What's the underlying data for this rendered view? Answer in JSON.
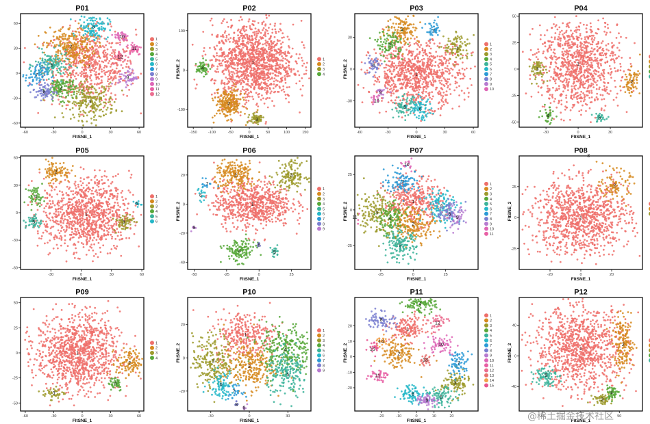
{
  "figure": {
    "watermark": "@稀土掘金技术社区",
    "cluster_colors": [
      "#ee6f6a",
      "#d68a1f",
      "#9c9a2c",
      "#57a83a",
      "#3bb39a",
      "#25b7c8",
      "#2b9ad6",
      "#7a7fd0",
      "#b77ad0",
      "#de66b6",
      "#e860a5",
      "#eb6e8f",
      "#e8716f",
      "#f2a04a",
      "#e85590"
    ]
  },
  "chart_data": [
    {
      "type": "scatter",
      "title": "P01",
      "xlabel": "FItSNE_1",
      "ylabel": "",
      "xlim": [
        -65,
        65
      ],
      "ylim": [
        -65,
        75
      ],
      "xticks": [
        -60,
        -30,
        0,
        30,
        60
      ],
      "yticks": [
        -60,
        -30,
        0,
        30,
        60
      ],
      "legend": [
        "1",
        "2",
        "3",
        "4",
        "5",
        "6",
        "7",
        "8",
        "9",
        "10",
        "11",
        "12"
      ],
      "clusters": [
        {
          "id": "1",
          "x": 8,
          "y": 8,
          "sx": 24,
          "sy": 22,
          "n": 650
        },
        {
          "id": "2",
          "x": -12,
          "y": 32,
          "sx": 13,
          "sy": 12,
          "n": 260
        },
        {
          "id": "3",
          "x": 8,
          "y": -34,
          "sx": 13,
          "sy": 11,
          "n": 230
        },
        {
          "id": "4",
          "x": -22,
          "y": -18,
          "sx": 8,
          "sy": 7,
          "n": 120
        },
        {
          "id": "5",
          "x": -32,
          "y": 10,
          "sx": 9,
          "sy": 8,
          "n": 120
        },
        {
          "id": "6",
          "x": 12,
          "y": 56,
          "sx": 8,
          "sy": 7,
          "n": 110
        },
        {
          "id": "7",
          "x": -48,
          "y": -2,
          "sx": 6,
          "sy": 7,
          "n": 70
        },
        {
          "id": "8",
          "x": -40,
          "y": -22,
          "sx": 6,
          "sy": 5,
          "n": 70
        },
        {
          "id": "9",
          "x": 48,
          "y": -5,
          "sx": 5,
          "sy": 5,
          "n": 50
        },
        {
          "id": "10",
          "x": 42,
          "y": 44,
          "sx": 4,
          "sy": 4,
          "n": 35
        },
        {
          "id": "11",
          "x": 55,
          "y": 30,
          "sx": 4,
          "sy": 4,
          "n": 35
        },
        {
          "id": "12",
          "x": 40,
          "y": 20,
          "sx": 4,
          "sy": 4,
          "n": 40
        }
      ]
    },
    {
      "type": "scatter",
      "title": "P02",
      "xlabel": "FItSNE_1",
      "ylabel": "FItSNE_2",
      "xlim": [
        -165,
        165
      ],
      "ylim": [
        -145,
        150
      ],
      "xticks": [
        -150,
        -100,
        -50,
        0,
        50,
        100,
        150
      ],
      "yticks": [
        -100,
        0,
        100
      ],
      "legend": [
        "1",
        "2",
        "3",
        "4"
      ],
      "clusters": [
        {
          "id": "1",
          "x": 10,
          "y": 20,
          "sx": 55,
          "sy": 50,
          "n": 1300
        },
        {
          "id": "2",
          "x": -55,
          "y": -85,
          "sx": 18,
          "sy": 18,
          "n": 230
        },
        {
          "id": "3",
          "x": 20,
          "y": -125,
          "sx": 9,
          "sy": 7,
          "n": 70
        },
        {
          "id": "4",
          "x": -125,
          "y": 5,
          "sx": 8,
          "sy": 9,
          "n": 60
        }
      ]
    },
    {
      "type": "scatter",
      "title": "P03",
      "xlabel": "FItSNE_1",
      "ylabel": "FItSNE_2",
      "xlim": [
        -65,
        65
      ],
      "ylim": [
        -55,
        55
      ],
      "xticks": [
        -60,
        -30,
        0,
        30,
        60
      ],
      "yticks": [
        -30,
        0,
        30
      ],
      "legend": [
        "1",
        "2",
        "3",
        "4",
        "5",
        "6",
        "7",
        "8",
        "9",
        "10"
      ],
      "clusters": [
        {
          "id": "1",
          "x": 0,
          "y": -5,
          "sx": 24,
          "sy": 15,
          "n": 900
        },
        {
          "id": "2",
          "x": -15,
          "y": 38,
          "sx": 9,
          "sy": 7,
          "n": 130
        },
        {
          "id": "3",
          "x": 43,
          "y": 20,
          "sx": 7,
          "sy": 7,
          "n": 90
        },
        {
          "id": "4",
          "x": -28,
          "y": 24,
          "sx": 7,
          "sy": 6,
          "n": 90
        },
        {
          "id": "5",
          "x": -12,
          "y": -36,
          "sx": 6,
          "sy": 5,
          "n": 70
        },
        {
          "id": "6",
          "x": 4,
          "y": -38,
          "sx": 6,
          "sy": 5,
          "n": 70
        },
        {
          "id": "7",
          "x": 18,
          "y": 36,
          "sx": 4,
          "sy": 4,
          "n": 40
        },
        {
          "id": "8",
          "x": -45,
          "y": 4,
          "sx": 4,
          "sy": 5,
          "n": 40
        },
        {
          "id": "9",
          "x": -38,
          "y": -22,
          "sx": 3,
          "sy": 3,
          "n": 20
        },
        {
          "id": "10",
          "x": -42,
          "y": -30,
          "sx": 3,
          "sy": 3,
          "n": 15
        }
      ]
    },
    {
      "type": "scatter",
      "title": "P04",
      "xlabel": "FItSNE_1",
      "ylabel": "",
      "xlim": [
        -55,
        60
      ],
      "ylim": [
        -55,
        55
      ],
      "xticks": [
        -30,
        0,
        30
      ],
      "yticks": [
        -50,
        -25,
        0,
        25,
        50
      ],
      "legend": [
        "1",
        "2",
        "3",
        "4",
        "5"
      ],
      "clusters": [
        {
          "id": "1",
          "x": 0,
          "y": 5,
          "sx": 19,
          "sy": 22,
          "n": 950
        },
        {
          "id": "2",
          "x": 50,
          "y": -12,
          "sx": 4,
          "sy": 6,
          "n": 70
        },
        {
          "id": "3",
          "x": -38,
          "y": 0,
          "sx": 4,
          "sy": 5,
          "n": 60
        },
        {
          "id": "4",
          "x": -28,
          "y": -44,
          "sx": 3,
          "sy": 4,
          "n": 35
        },
        {
          "id": "5",
          "x": 20,
          "y": -46,
          "sx": 3,
          "sy": 2,
          "n": 25
        }
      ]
    },
    {
      "type": "scatter",
      "title": "P05",
      "xlabel": "FItSNE_1",
      "ylabel": "",
      "xlim": [
        -60,
        62
      ],
      "ylim": [
        -62,
        65
      ],
      "xticks": [
        -30,
        0,
        30,
        60
      ],
      "yticks": [
        -60,
        -30,
        0,
        30,
        60
      ],
      "legend": [
        "1",
        "2",
        "3",
        "4",
        "5",
        "6"
      ],
      "clusters": [
        {
          "id": "1",
          "x": 5,
          "y": -2,
          "sx": 22,
          "sy": 20,
          "n": 1000
        },
        {
          "id": "2",
          "x": -25,
          "y": 45,
          "sx": 7,
          "sy": 6,
          "n": 90
        },
        {
          "id": "3",
          "x": 42,
          "y": -10,
          "sx": 5,
          "sy": 5,
          "n": 60
        },
        {
          "id": "4",
          "x": -45,
          "y": 18,
          "sx": 4,
          "sy": 5,
          "n": 50
        },
        {
          "id": "5",
          "x": -47,
          "y": -10,
          "sx": 4,
          "sy": 4,
          "n": 45
        },
        {
          "id": "6",
          "x": 55,
          "y": 10,
          "sx": 2,
          "sy": 2,
          "n": 10
        }
      ]
    },
    {
      "type": "scatter",
      "title": "P06",
      "xlabel": "FItSNE_1",
      "ylabel": "FItSNE_2",
      "xlim": [
        -55,
        40
      ],
      "ylim": [
        -45,
        35
      ],
      "xticks": [
        -50,
        -25,
        0,
        25
      ],
      "yticks": [
        -40,
        -20,
        0,
        20
      ],
      "legend": [
        "1",
        "2",
        "3",
        "4",
        "5",
        "6",
        "7",
        "8",
        "9"
      ],
      "clusters": [
        {
          "id": "1",
          "x": -5,
          "y": 0,
          "sx": 15,
          "sy": 8,
          "n": 700
        },
        {
          "id": "2",
          "x": -18,
          "y": 20,
          "sx": 8,
          "sy": 5,
          "n": 200
        },
        {
          "id": "3",
          "x": 25,
          "y": 20,
          "sx": 6,
          "sy": 5,
          "n": 140
        },
        {
          "id": "4",
          "x": -15,
          "y": -32,
          "sx": 6,
          "sy": 4,
          "n": 130
        },
        {
          "id": "5",
          "x": 12,
          "y": -33,
          "sx": 2,
          "sy": 2,
          "n": 20
        },
        {
          "id": "6",
          "x": -45,
          "y": 6,
          "sx": 2,
          "sy": 3,
          "n": 15
        },
        {
          "id": "7",
          "x": -40,
          "y": 14,
          "sx": 2,
          "sy": 2,
          "n": 15
        },
        {
          "id": "8",
          "x": 0,
          "y": -28,
          "sx": 1,
          "sy": 1,
          "n": 6
        },
        {
          "id": "9",
          "x": -50,
          "y": -16,
          "sx": 1,
          "sy": 1,
          "n": 6
        }
      ]
    },
    {
      "type": "scatter",
      "title": "P07",
      "xlabel": "FItSNE_1",
      "ylabel": "FItSNE_2",
      "xlim": [
        -45,
        50
      ],
      "ylim": [
        -42,
        40
      ],
      "xticks": [
        -25,
        0,
        25
      ],
      "yticks": [
        -25,
        0,
        25
      ],
      "legend": [
        "1",
        "2",
        "3",
        "4",
        "5",
        "6",
        "7",
        "8",
        "9",
        "10",
        "11"
      ],
      "clusters": [
        {
          "id": "1",
          "x": 0,
          "y": 6,
          "sx": 11,
          "sy": 8,
          "n": 350
        },
        {
          "id": "2",
          "x": 0,
          "y": -10,
          "sx": 9,
          "sy": 6,
          "n": 200
        },
        {
          "id": "3",
          "x": -28,
          "y": -2,
          "sx": 8,
          "sy": 8,
          "n": 170
        },
        {
          "id": "4",
          "x": -18,
          "y": -6,
          "sx": 6,
          "sy": 6,
          "n": 100
        },
        {
          "id": "5",
          "x": -10,
          "y": -25,
          "sx": 6,
          "sy": 5,
          "n": 140
        },
        {
          "id": "6",
          "x": 22,
          "y": 3,
          "sx": 7,
          "sy": 6,
          "n": 120
        },
        {
          "id": "7",
          "x": -8,
          "y": 20,
          "sx": 7,
          "sy": 4,
          "n": 100
        },
        {
          "id": "8",
          "x": 28,
          "y": -3,
          "sx": 5,
          "sy": 5,
          "n": 70
        },
        {
          "id": "9",
          "x": 34,
          "y": -5,
          "sx": 4,
          "sy": 4,
          "n": 40
        },
        {
          "id": "10",
          "x": -5,
          "y": 32,
          "sx": 2,
          "sy": 2,
          "n": 15
        },
        {
          "id": "11",
          "x": -45,
          "y": -5,
          "sx": 2,
          "sy": 3,
          "n": 15
        }
      ]
    },
    {
      "type": "scatter",
      "title": "P08",
      "xlabel": "FItSNE_1",
      "ylabel": "FItSNE_2",
      "xlim": [
        -40,
        40
      ],
      "ylim": [
        -42,
        52
      ],
      "xticks": [
        -20,
        0,
        20
      ],
      "yticks": [
        -25,
        0,
        25,
        50
      ],
      "legend": [
        "1",
        "2",
        "3"
      ],
      "clusters": [
        {
          "id": "1",
          "x": 0,
          "y": 0,
          "sx": 16,
          "sy": 15,
          "n": 1000
        },
        {
          "id": "2",
          "x": 22,
          "y": 26,
          "sx": 5,
          "sy": 6,
          "n": 90
        },
        {
          "id": "3",
          "x": 5,
          "y": 50,
          "sx": 1,
          "sy": 1,
          "n": 4
        }
      ]
    },
    {
      "type": "scatter",
      "title": "P09",
      "xlabel": "FItSNE_1",
      "ylabel": "",
      "xlim": [
        -65,
        65
      ],
      "ylim": [
        -58,
        58
      ],
      "xticks": [
        -60,
        -30,
        0,
        30,
        60
      ],
      "yticks": [
        -50,
        -25,
        0,
        25,
        50
      ],
      "legend": [
        "1",
        "2",
        "3",
        "4"
      ],
      "clusters": [
        {
          "id": "1",
          "x": -5,
          "y": 0,
          "sx": 22,
          "sy": 19,
          "n": 1050
        },
        {
          "id": "2",
          "x": 50,
          "y": -10,
          "sx": 7,
          "sy": 7,
          "n": 110
        },
        {
          "id": "3",
          "x": -30,
          "y": -40,
          "sx": 6,
          "sy": 3,
          "n": 40
        },
        {
          "id": "4",
          "x": 35,
          "y": -30,
          "sx": 4,
          "sy": 4,
          "n": 40
        }
      ]
    },
    {
      "type": "scatter",
      "title": "P10",
      "xlabel": "FItSNE_1",
      "ylabel": "FItSNE_2",
      "xlim": [
        -48,
        48
      ],
      "ylim": [
        -32,
        38
      ],
      "xticks": [
        -30,
        0,
        30
      ],
      "yticks": [
        -20,
        0,
        20
      ],
      "legend": [
        "1",
        "2",
        "3",
        "4",
        "5",
        "6",
        "7",
        "8",
        "9"
      ],
      "clusters": [
        {
          "id": "1",
          "x": -3,
          "y": 14,
          "sx": 12,
          "sy": 7,
          "n": 300
        },
        {
          "id": "2",
          "x": 0,
          "y": -5,
          "sx": 10,
          "sy": 7,
          "n": 260
        },
        {
          "id": "3",
          "x": -28,
          "y": -2,
          "sx": 8,
          "sy": 8,
          "n": 220
        },
        {
          "id": "4",
          "x": 28,
          "y": 5,
          "sx": 10,
          "sy": 8,
          "n": 260
        },
        {
          "id": "5",
          "x": 30,
          "y": -10,
          "sx": 8,
          "sy": 7,
          "n": 180
        },
        {
          "id": "6",
          "x": -22,
          "y": -16,
          "sx": 5,
          "sy": 4,
          "n": 80
        },
        {
          "id": "7",
          "x": -12,
          "y": -20,
          "sx": 3,
          "sy": 2,
          "n": 25
        },
        {
          "id": "8",
          "x": -10,
          "y": -28,
          "sx": 1,
          "sy": 1,
          "n": 6
        },
        {
          "id": "9",
          "x": -4,
          "y": -30,
          "sx": 1,
          "sy": 1,
          "n": 6
        }
      ]
    },
    {
      "type": "scatter",
      "title": "P11",
      "xlabel": "FItSNE_1",
      "ylabel": "FItSNE_2",
      "xlim": [
        -35,
        35
      ],
      "ylim": [
        -35,
        40
      ],
      "xticks": [
        -20,
        -10,
        0,
        10,
        20
      ],
      "yticks": [
        -20,
        -10,
        0,
        10,
        20
      ],
      "legend": [
        "1",
        "2",
        "3",
        "4",
        "5",
        "6",
        "7",
        "8",
        "9",
        "10",
        "11",
        "12",
        "13",
        "14",
        "15"
      ],
      "clusters": [
        {
          "id": "1",
          "x": -5,
          "y": 18,
          "sx": 5,
          "sy": 4,
          "n": 150
        },
        {
          "id": "2",
          "x": -10,
          "y": 2,
          "sx": 5,
          "sy": 5,
          "n": 130
        },
        {
          "id": "3",
          "x": 22,
          "y": -17,
          "sx": 4,
          "sy": 4,
          "n": 100
        },
        {
          "id": "4",
          "x": 2,
          "y": 34,
          "sx": 5,
          "sy": 3,
          "n": 110
        },
        {
          "id": "5",
          "x": 14,
          "y": -26,
          "sx": 4,
          "sy": 3,
          "n": 80
        },
        {
          "id": "6",
          "x": -2,
          "y": -24,
          "sx": 4,
          "sy": 3,
          "n": 80
        },
        {
          "id": "7",
          "x": 24,
          "y": -4,
          "sx": 3,
          "sy": 4,
          "n": 70
        },
        {
          "id": "8",
          "x": -20,
          "y": 24,
          "sx": 4,
          "sy": 3,
          "n": 70
        },
        {
          "id": "9",
          "x": 6,
          "y": -28,
          "sx": 3,
          "sy": 2,
          "n": 60
        },
        {
          "id": "10",
          "x": 14,
          "y": 8,
          "sx": 4,
          "sy": 3,
          "n": 60
        },
        {
          "id": "11",
          "x": -22,
          "y": -12,
          "sx": 3,
          "sy": 2,
          "n": 40
        },
        {
          "id": "12",
          "x": 12,
          "y": 22,
          "sx": 3,
          "sy": 3,
          "n": 40
        },
        {
          "id": "13",
          "x": 5,
          "y": -2,
          "sx": 2,
          "sy": 2,
          "n": 25
        },
        {
          "id": "14",
          "x": -20,
          "y": 10,
          "sx": 2,
          "sy": 2,
          "n": 20
        },
        {
          "id": "15",
          "x": -25,
          "y": 5,
          "sx": 2,
          "sy": 2,
          "n": 20
        }
      ]
    },
    {
      "type": "scatter",
      "title": "P12",
      "xlabel": "FItSNE_1",
      "ylabel": "FItSNE_2",
      "xlim": [
        -80,
        80
      ],
      "ylim": [
        -72,
        80
      ],
      "xticks": [
        -50,
        0,
        50
      ],
      "yticks": [
        -40,
        0,
        40
      ],
      "legend": [
        "1",
        "2",
        "3",
        "4",
        "5"
      ],
      "clusters": [
        {
          "id": "1",
          "x": 0,
          "y": 10,
          "sx": 30,
          "sy": 27,
          "n": 1000
        },
        {
          "id": "2",
          "x": 55,
          "y": 15,
          "sx": 7,
          "sy": 17,
          "n": 160
        },
        {
          "id": "3",
          "x": 28,
          "y": -57,
          "sx": 6,
          "sy": 4,
          "n": 50
        },
        {
          "id": "4",
          "x": 40,
          "y": -48,
          "sx": 5,
          "sy": 4,
          "n": 50
        },
        {
          "id": "5",
          "x": -45,
          "y": -25,
          "sx": 7,
          "sy": 7,
          "n": 80
        }
      ]
    }
  ]
}
